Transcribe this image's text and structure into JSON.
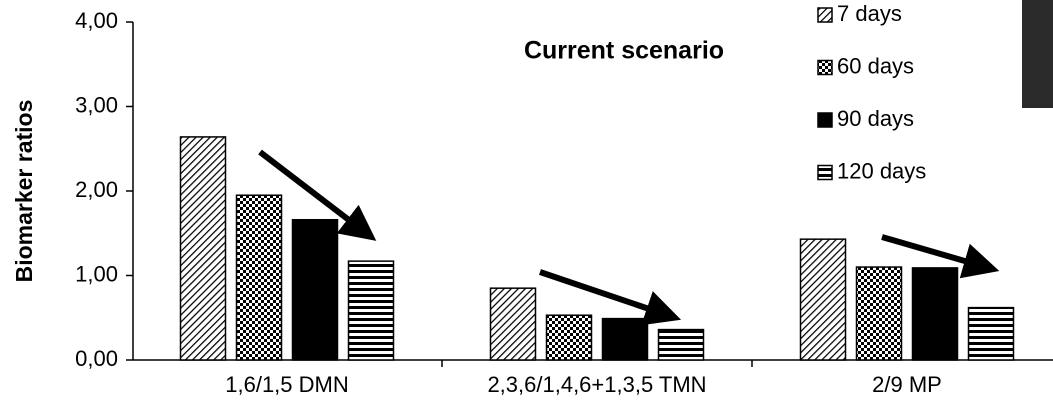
{
  "chart_data": {
    "type": "bar",
    "title": "Current scenario",
    "y_label": "Biomarker ratios",
    "categories": [
      "1,6/1,5 DMN",
      "2,3,6/1,4,6+1,3,5 TMN",
      "2/9 MP"
    ],
    "series": [
      {
        "name": "7 days",
        "color": "#000000",
        "pattern": "diagonal",
        "values": [
          2.64,
          0.85,
          1.43
        ]
      },
      {
        "name": "60 days",
        "color": "#000000",
        "pattern": "checker",
        "values": [
          1.95,
          0.53,
          1.1
        ]
      },
      {
        "name": "90 days",
        "color": "#000000",
        "pattern": "solid",
        "values": [
          1.66,
          0.49,
          1.09
        ]
      },
      {
        "name": "120 days",
        "color": "#000000",
        "pattern": "horizontal",
        "values": [
          1.17,
          0.36,
          0.62
        ]
      }
    ],
    "ylim": [
      0,
      4
    ],
    "yticks": [
      {
        "value": 0,
        "label": "0,00"
      },
      {
        "value": 1,
        "label": "1,00"
      },
      {
        "value": 2,
        "label": "2,00"
      },
      {
        "value": 3,
        "label": "3,00"
      },
      {
        "value": 4,
        "label": "4,00"
      }
    ],
    "grid": false
  }
}
